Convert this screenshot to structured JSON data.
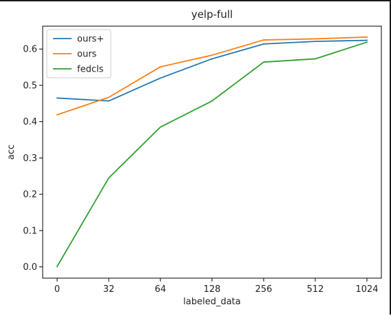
{
  "chart_data": {
    "type": "line",
    "title": "yelp-full",
    "xlabel": "labeled_data",
    "ylabel": "acc",
    "categories": [
      "0",
      "32",
      "64",
      "128",
      "256",
      "512",
      "1024"
    ],
    "ylim": [
      -0.031,
      0.663
    ],
    "yticks": [
      0.0,
      0.1,
      0.2,
      0.3,
      0.4,
      0.5,
      0.6
    ],
    "ytick_labels": [
      "0.0",
      "0.1",
      "0.2",
      "0.3",
      "0.4",
      "0.5",
      "0.6"
    ],
    "grid": false,
    "legend_position": "top-left",
    "series": [
      {
        "name": "ours+",
        "color": "#1f77b4",
        "values": [
          0.465,
          0.457,
          0.52,
          0.573,
          0.614,
          0.621,
          0.624
        ]
      },
      {
        "name": "ours",
        "color": "#ff7f0e",
        "values": [
          0.419,
          0.467,
          0.551,
          0.583,
          0.625,
          0.628,
          0.633
        ]
      },
      {
        "name": "fedcls",
        "color": "#2ca02c",
        "values": [
          0.001,
          0.245,
          0.385,
          0.457,
          0.564,
          0.573,
          0.619
        ]
      }
    ]
  }
}
